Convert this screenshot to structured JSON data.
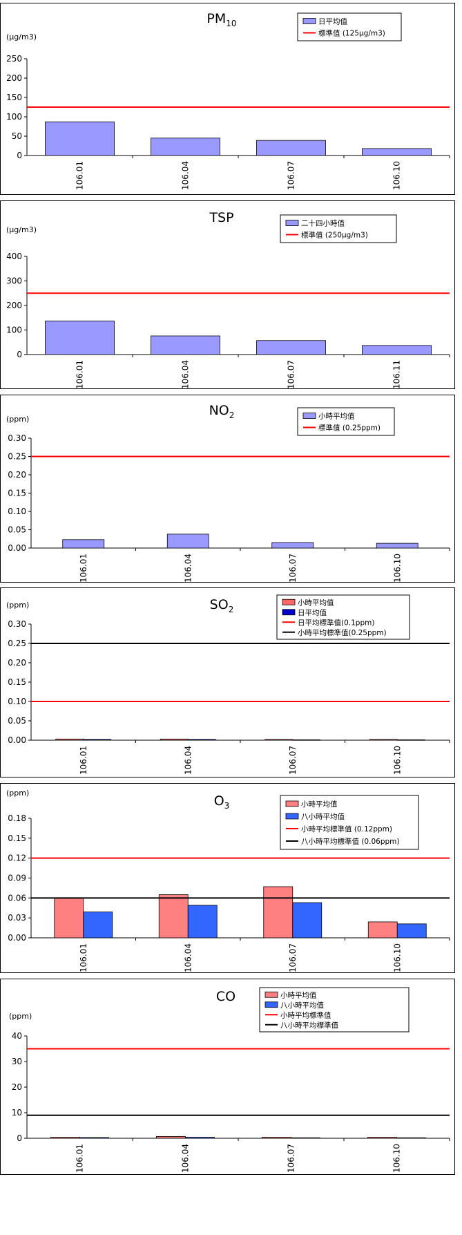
{
  "chart_data": [
    {
      "id": "pm10",
      "type": "bar",
      "title": "PM",
      "title_sub": "10",
      "unit": "(μg/m3)",
      "ylim": [
        0,
        250
      ],
      "yticks": [
        0,
        50,
        100,
        150,
        200,
        250
      ],
      "tick_decimals": 0,
      "categories": [
        "106.01",
        "106.04",
        "106.07",
        "106.10"
      ],
      "series": [
        {
          "name": "日平均值",
          "values": [
            87,
            45,
            39,
            18
          ],
          "color": "#9999ff"
        }
      ],
      "lines": [
        {
          "name": "標準值 (125μg/m3)",
          "value": 125,
          "color": "#ff0000"
        }
      ]
    },
    {
      "id": "tsp",
      "type": "bar",
      "title": "TSP",
      "title_sub": "",
      "unit": "(μg/m3)",
      "ylim": [
        0,
        400
      ],
      "yticks": [
        0,
        100,
        200,
        300,
        400
      ],
      "tick_decimals": 0,
      "categories": [
        "106.01",
        "106.04",
        "106.07",
        "106.11"
      ],
      "series": [
        {
          "name": "二十四小時值",
          "values": [
            137,
            76,
            57,
            37
          ],
          "color": "#9999ff"
        }
      ],
      "lines": [
        {
          "name": "標準值 (250μg/m3)",
          "value": 250,
          "color": "#ff0000"
        }
      ]
    },
    {
      "id": "no2",
      "type": "bar",
      "title": "NO",
      "title_sub": "2",
      "unit": "(ppm)",
      "ylim": [
        0,
        0.3
      ],
      "yticks": [
        0,
        0.05,
        0.1,
        0.15,
        0.2,
        0.25,
        0.3
      ],
      "tick_decimals": 2,
      "categories": [
        "106.01",
        "106.04",
        "106.07",
        "106.10"
      ],
      "series": [
        {
          "name": "小時平均值",
          "values": [
            0.023,
            0.038,
            0.015,
            0.013
          ],
          "color": "#9999ff"
        }
      ],
      "lines": [
        {
          "name": "標準值 (0.25ppm)",
          "value": 0.25,
          "color": "#ff0000"
        }
      ]
    },
    {
      "id": "so2",
      "type": "bar",
      "title": "SO",
      "title_sub": "2",
      "unit": "(ppm)",
      "ylim": [
        0,
        0.3
      ],
      "yticks": [
        0,
        0.05,
        0.1,
        0.15,
        0.2,
        0.25,
        0.3
      ],
      "tick_decimals": 2,
      "categories": [
        "106.01",
        "106.04",
        "106.07",
        "106.10"
      ],
      "series": [
        {
          "name": "小時平均值",
          "values": [
            0.003,
            0.003,
            0.002,
            0.002
          ],
          "color": "#ff6666"
        },
        {
          "name": "日平均值",
          "values": [
            0.002,
            0.002,
            0.001,
            0.001
          ],
          "color": "#0000cc"
        }
      ],
      "lines": [
        {
          "name": "日平均標準值(0.1ppm)",
          "value": 0.1,
          "color": "#ff0000"
        },
        {
          "name": "小時平均標準值(0.25ppm)",
          "value": 0.25,
          "color": "#000000"
        }
      ]
    },
    {
      "id": "o3",
      "type": "bar",
      "title": "O",
      "title_sub": "3",
      "unit": "(ppm)",
      "ylim": [
        0,
        0.18
      ],
      "yticks": [
        0,
        0.03,
        0.06,
        0.09,
        0.12,
        0.15,
        0.18
      ],
      "tick_decimals": 2,
      "categories": [
        "106.01",
        "106.04",
        "106.07",
        "106.10"
      ],
      "series": [
        {
          "name": "小時平均值",
          "values": [
            0.06,
            0.065,
            0.077,
            0.024
          ],
          "color": "#ff8080"
        },
        {
          "name": "八小時平均值",
          "values": [
            0.039,
            0.049,
            0.053,
            0.021
          ],
          "color": "#3366ff"
        }
      ],
      "lines": [
        {
          "name": "小時平均標準值 (0.12ppm)",
          "value": 0.12,
          "color": "#ff0000"
        },
        {
          "name": "八小時平均標準值 (0.06ppm)",
          "value": 0.06,
          "color": "#000000"
        }
      ]
    },
    {
      "id": "co",
      "type": "bar",
      "title": "CO",
      "title_sub": "",
      "unit": "(ppm)",
      "ylim": [
        0,
        40
      ],
      "yticks": [
        0,
        10,
        20,
        30,
        40
      ],
      "tick_decimals": 0,
      "categories": [
        "106.01",
        "106.04",
        "106.07",
        "106.10"
      ],
      "series": [
        {
          "name": "小時平均值",
          "values": [
            0.4,
            0.7,
            0.4,
            0.4
          ],
          "color": "#ff8080"
        },
        {
          "name": "八小時平均值",
          "values": [
            0.3,
            0.4,
            0.2,
            0.2
          ],
          "color": "#3366ff"
        }
      ],
      "lines": [
        {
          "name": "小時平均標準值",
          "value": 35,
          "color": "#ff0000"
        },
        {
          "name": "八小時平均標準值",
          "value": 9,
          "color": "#000000"
        }
      ]
    }
  ]
}
